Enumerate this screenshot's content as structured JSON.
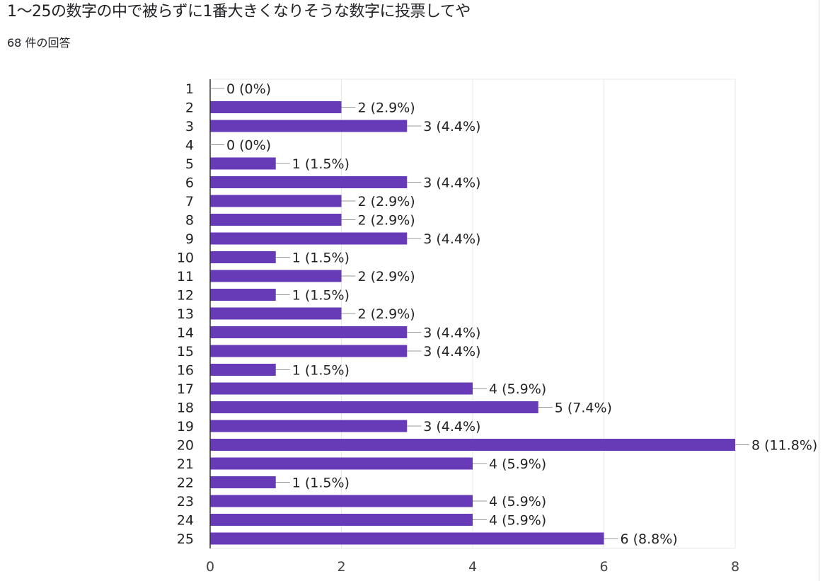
{
  "page": {
    "title": "1〜25の数字の中で被らずに1番大きくなりそうな数字に投票してや",
    "response_count": "68 件の回答"
  },
  "colors": {
    "bar": "#673ab7",
    "grid": "#e8e8e8",
    "axis": "#333333",
    "leader": "#999999"
  },
  "chart_data": {
    "type": "bar",
    "orientation": "horizontal",
    "categories": [
      "1",
      "2",
      "3",
      "4",
      "5",
      "6",
      "7",
      "8",
      "9",
      "10",
      "11",
      "12",
      "13",
      "14",
      "15",
      "16",
      "17",
      "18",
      "19",
      "20",
      "21",
      "22",
      "23",
      "24",
      "25"
    ],
    "values": [
      0,
      2,
      3,
      0,
      1,
      3,
      2,
      2,
      3,
      1,
      2,
      1,
      2,
      3,
      3,
      1,
      4,
      5,
      3,
      8,
      4,
      1,
      4,
      4,
      6
    ],
    "data_labels": [
      "0 (0%)",
      "2 (2.9%)",
      "3 (4.4%)",
      "0 (0%)",
      "1 (1.5%)",
      "3 (4.4%)",
      "2 (2.9%)",
      "2 (2.9%)",
      "3 (4.4%)",
      "1 (1.5%)",
      "2 (2.9%)",
      "1 (1.5%)",
      "2 (2.9%)",
      "3 (4.4%)",
      "3 (4.4%)",
      "1 (1.5%)",
      "4 (5.9%)",
      "5 (7.4%)",
      "3 (4.4%)",
      "8 (11.8%)",
      "4 (5.9%)",
      "1 (1.5%)",
      "4 (5.9%)",
      "4 (5.9%)",
      "6 (8.8%)"
    ],
    "xlim": [
      0,
      8
    ],
    "x_ticks": [
      0,
      2,
      4,
      6,
      8
    ],
    "x_tick_labels": [
      "0",
      "2",
      "4",
      "6",
      "8"
    ],
    "grid": true,
    "legend": "none",
    "title": "",
    "xlabel": "",
    "ylabel": ""
  }
}
